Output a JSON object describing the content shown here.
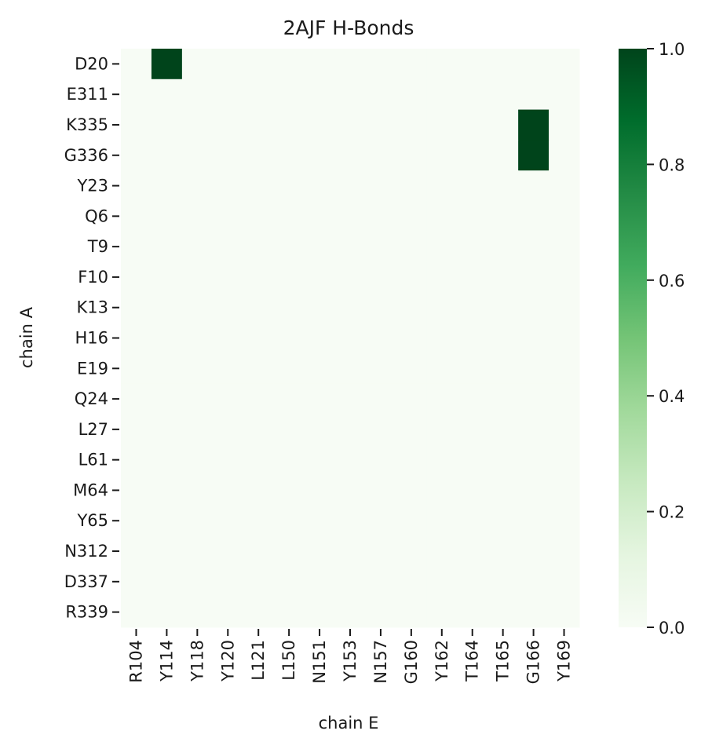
{
  "chart_data": {
    "type": "heatmap",
    "title": "2AJF H-Bonds",
    "xlabel": "chain E",
    "ylabel": "chain A",
    "x_categories": [
      "R104",
      "Y114",
      "Y118",
      "Y120",
      "L121",
      "L150",
      "N151",
      "Y153",
      "N157",
      "G160",
      "Y162",
      "T164",
      "T165",
      "G166",
      "Y169"
    ],
    "y_categories": [
      "D20",
      "E311",
      "K335",
      "G336",
      "Y23",
      "Q6",
      "T9",
      "F10",
      "K13",
      "H16",
      "E19",
      "Q24",
      "L27",
      "L61",
      "M64",
      "Y65",
      "N312",
      "D337",
      "R339"
    ],
    "values": [
      [
        0,
        1,
        0,
        0,
        0,
        0,
        0,
        0,
        0,
        0,
        0,
        0,
        0,
        0,
        0
      ],
      [
        0,
        0,
        0,
        0,
        0,
        0,
        0,
        0,
        0,
        0,
        0,
        0,
        0,
        0,
        0
      ],
      [
        0,
        0,
        0,
        0,
        0,
        0,
        0,
        0,
        0,
        0,
        0,
        0,
        0,
        1,
        0
      ],
      [
        0,
        0,
        0,
        0,
        0,
        0,
        0,
        0,
        0,
        0,
        0,
        0,
        0,
        1,
        0
      ],
      [
        0,
        0,
        0,
        0,
        0,
        0,
        0,
        0,
        0,
        0,
        0,
        0,
        0,
        0,
        0
      ],
      [
        0,
        0,
        0,
        0,
        0,
        0,
        0,
        0,
        0,
        0,
        0,
        0,
        0,
        0,
        0
      ],
      [
        0,
        0,
        0,
        0,
        0,
        0,
        0,
        0,
        0,
        0,
        0,
        0,
        0,
        0,
        0
      ],
      [
        0,
        0,
        0,
        0,
        0,
        0,
        0,
        0,
        0,
        0,
        0,
        0,
        0,
        0,
        0
      ],
      [
        0,
        0,
        0,
        0,
        0,
        0,
        0,
        0,
        0,
        0,
        0,
        0,
        0,
        0,
        0
      ],
      [
        0,
        0,
        0,
        0,
        0,
        0,
        0,
        0,
        0,
        0,
        0,
        0,
        0,
        0,
        0
      ],
      [
        0,
        0,
        0,
        0,
        0,
        0,
        0,
        0,
        0,
        0,
        0,
        0,
        0,
        0,
        0
      ],
      [
        0,
        0,
        0,
        0,
        0,
        0,
        0,
        0,
        0,
        0,
        0,
        0,
        0,
        0,
        0
      ],
      [
        0,
        0,
        0,
        0,
        0,
        0,
        0,
        0,
        0,
        0,
        0,
        0,
        0,
        0,
        0
      ],
      [
        0,
        0,
        0,
        0,
        0,
        0,
        0,
        0,
        0,
        0,
        0,
        0,
        0,
        0,
        0
      ],
      [
        0,
        0,
        0,
        0,
        0,
        0,
        0,
        0,
        0,
        0,
        0,
        0,
        0,
        0,
        0
      ],
      [
        0,
        0,
        0,
        0,
        0,
        0,
        0,
        0,
        0,
        0,
        0,
        0,
        0,
        0,
        0
      ],
      [
        0,
        0,
        0,
        0,
        0,
        0,
        0,
        0,
        0,
        0,
        0,
        0,
        0,
        0,
        0
      ],
      [
        0,
        0,
        0,
        0,
        0,
        0,
        0,
        0,
        0,
        0,
        0,
        0,
        0,
        0,
        0
      ],
      [
        0,
        0,
        0,
        0,
        0,
        0,
        0,
        0,
        0,
        0,
        0,
        0,
        0,
        0,
        0
      ]
    ],
    "colorbar": {
      "range": [
        0.0,
        1.0
      ],
      "ticks": [
        "0.0",
        "0.2",
        "0.4",
        "0.6",
        "0.8",
        "1.0"
      ],
      "colormap": "Greens",
      "low_color": "#f7fcf5",
      "high_color": "#00441b"
    },
    "grid": false
  }
}
